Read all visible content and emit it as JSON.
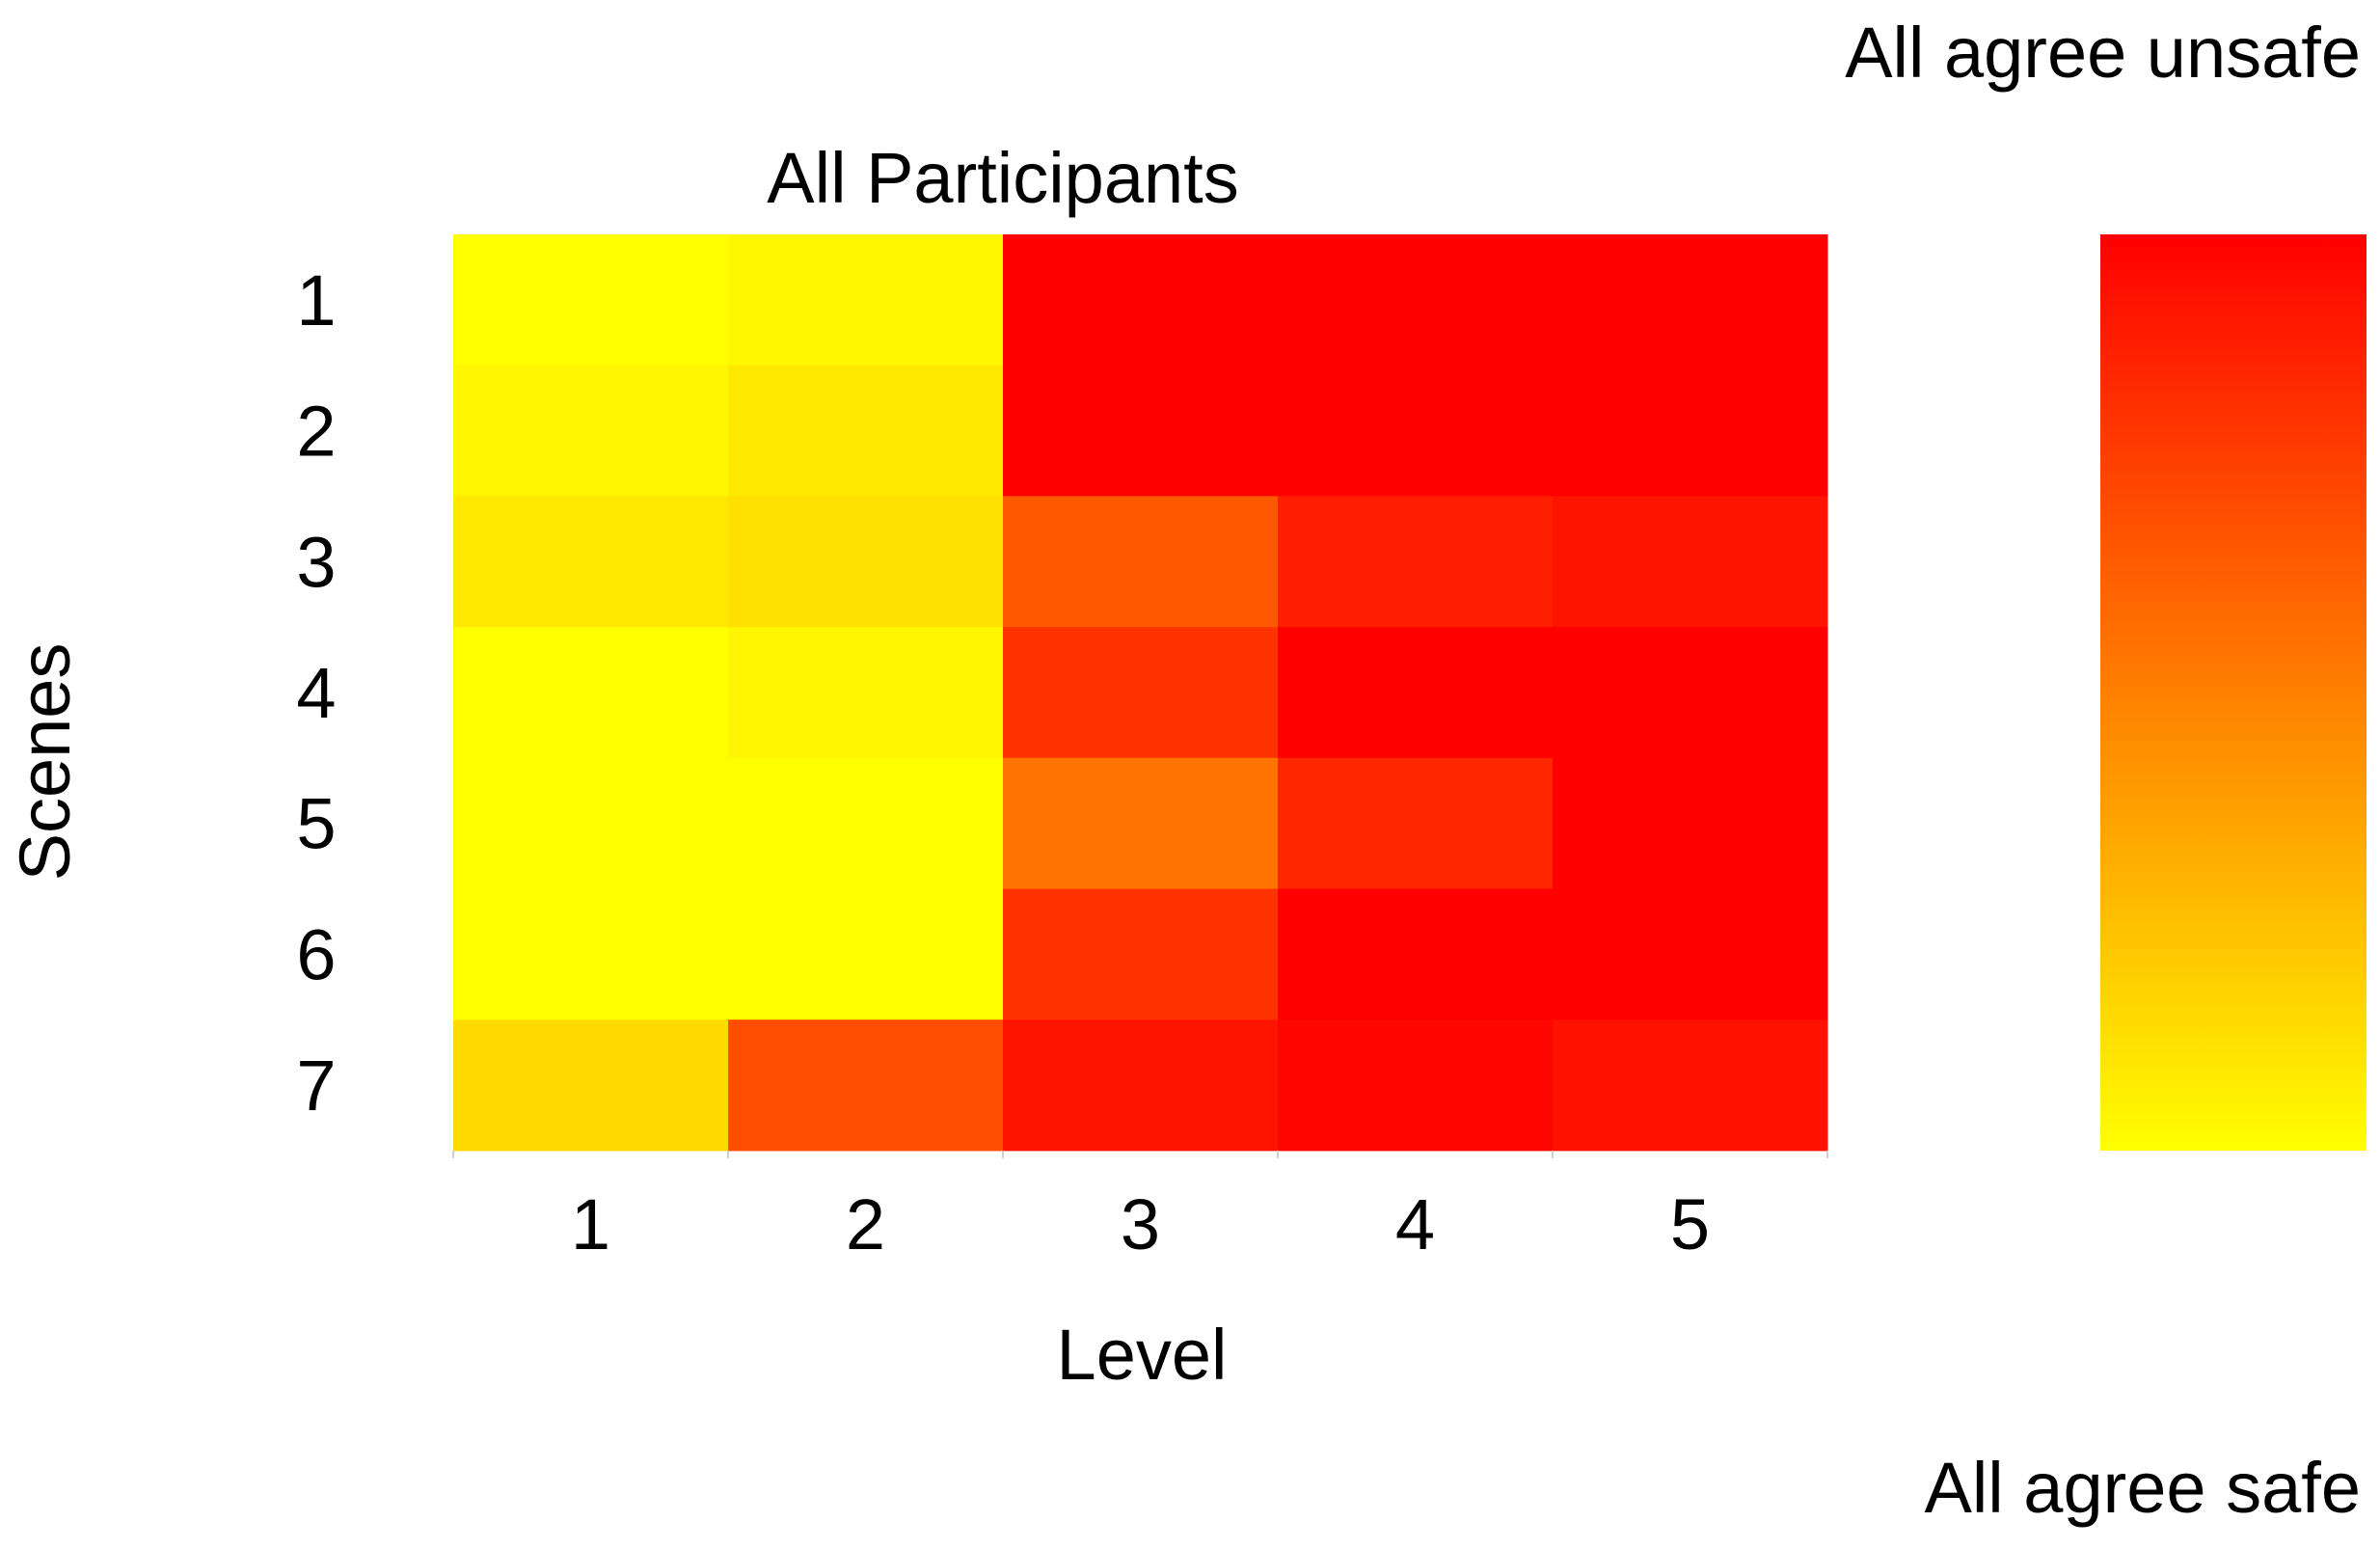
{
  "chart_data": {
    "type": "heatmap",
    "title": "All Participants",
    "xlabel": "Level",
    "ylabel": "Scenes",
    "x_categories": [
      "1",
      "2",
      "3",
      "4",
      "5"
    ],
    "y_categories": [
      "1",
      "2",
      "3",
      "4",
      "5",
      "6",
      "7"
    ],
    "values": [
      [
        0.0,
        0.03,
        1.0,
        1.0,
        1.0
      ],
      [
        0.04,
        0.09,
        1.0,
        1.0,
        1.0
      ],
      [
        0.09,
        0.12,
        0.65,
        0.88,
        0.92
      ],
      [
        0.0,
        0.04,
        0.8,
        1.0,
        1.0
      ],
      [
        0.0,
        0.0,
        0.55,
        0.85,
        1.0
      ],
      [
        0.0,
        0.0,
        0.8,
        1.0,
        1.0
      ],
      [
        0.14,
        0.7,
        0.92,
        0.98,
        0.93
      ]
    ],
    "colorbar": {
      "top_label": "All agree unsafe",
      "bottom_label": "All agree safe",
      "min_color": "#FFFF00",
      "max_color": "#FF0000"
    },
    "grid": false
  }
}
